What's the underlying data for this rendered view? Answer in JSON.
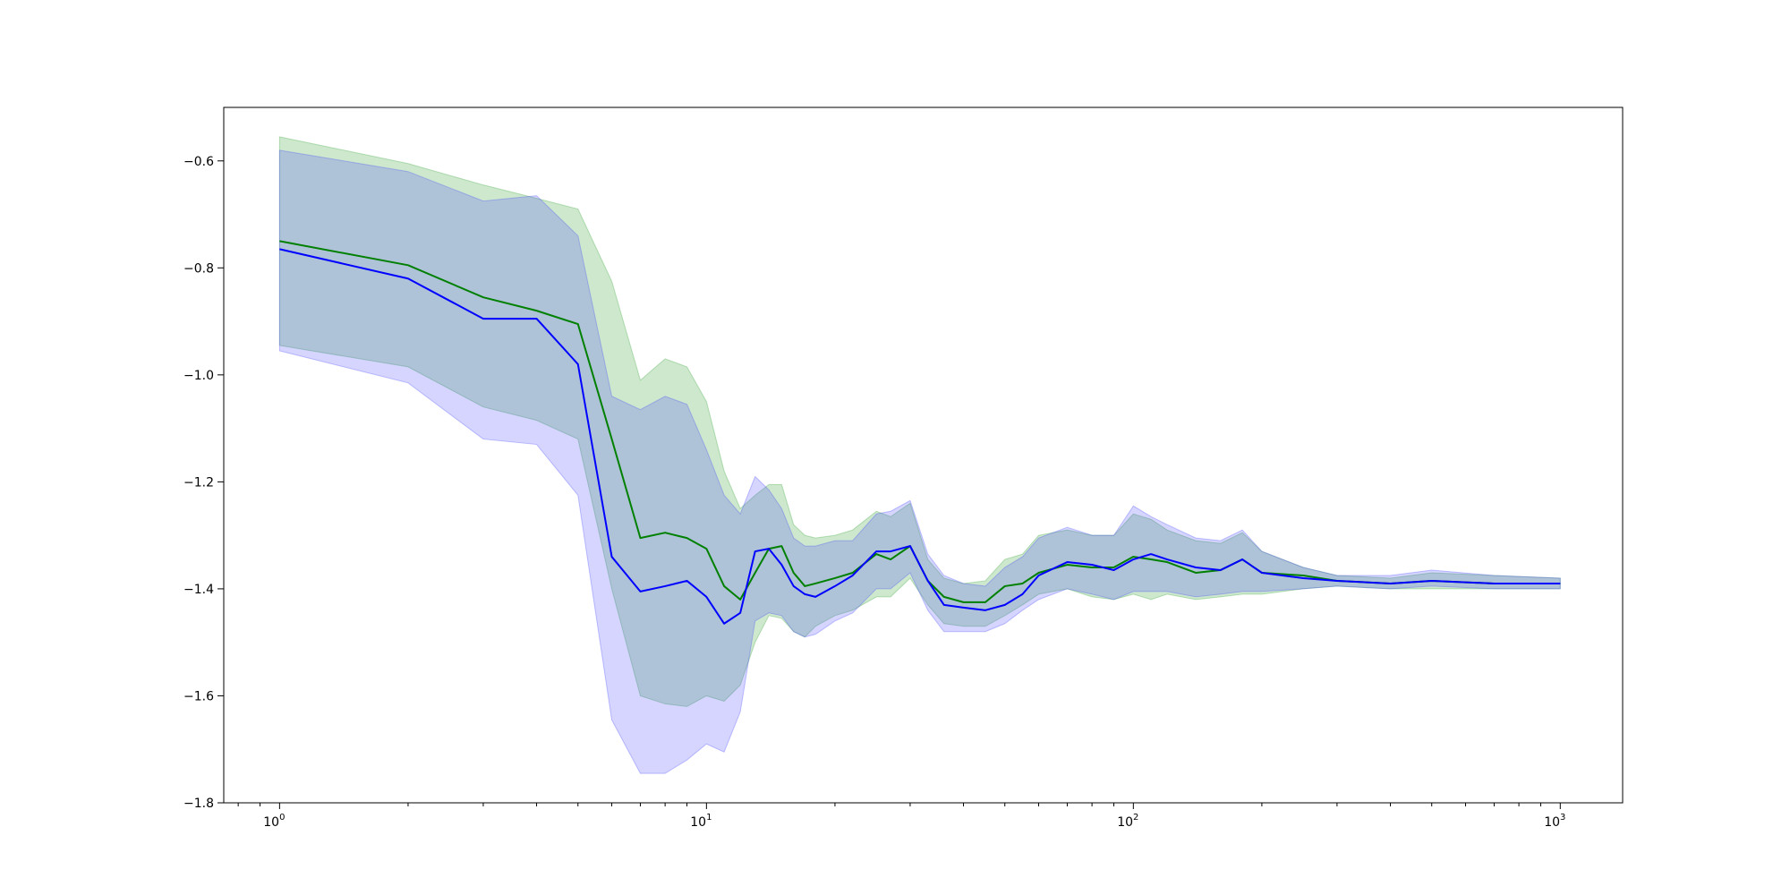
{
  "chart_data": {
    "type": "line",
    "title": "",
    "xlabel": "",
    "ylabel": "",
    "xscale": "log",
    "xlim": [
      0.74,
      1400
    ],
    "ylim": [
      -1.8,
      -0.5
    ],
    "grid": false,
    "x_major_ticks": [
      1,
      10,
      100,
      1000
    ],
    "x_tick_labels": [
      {
        "base": "10",
        "exp": "0"
      },
      {
        "base": "10",
        "exp": "1"
      },
      {
        "base": "10",
        "exp": "2"
      },
      {
        "base": "10",
        "exp": "3"
      }
    ],
    "y_ticks": [
      -0.6,
      -0.8,
      -1.0,
      -1.2,
      -1.4,
      -1.6,
      -1.8
    ],
    "y_tick_labels": [
      "−0.6",
      "−0.8",
      "−1.0",
      "−1.2",
      "−1.4",
      "−1.6",
      "−1.8"
    ],
    "colors": {
      "series_green": "#008000",
      "series_blue": "#0000ff",
      "band_green": "#2ca02c",
      "band_blue": "#4040ff"
    },
    "series": [
      {
        "color": "#008000",
        "x": [
          1,
          2,
          3,
          4,
          5,
          6,
          7,
          8,
          9,
          10,
          11,
          12,
          13,
          14,
          15,
          16,
          17,
          18,
          20,
          22,
          25,
          27,
          30,
          33,
          36,
          40,
          45,
          50,
          55,
          60,
          70,
          80,
          90,
          100,
          110,
          120,
          140,
          160,
          180,
          200,
          250,
          300,
          400,
          500,
          700,
          1000
        ],
        "y": [
          -0.75,
          -0.795,
          -0.855,
          -0.88,
          -0.905,
          -1.12,
          -1.305,
          -1.295,
          -1.305,
          -1.325,
          -1.395,
          -1.42,
          -1.37,
          -1.325,
          -1.32,
          -1.37,
          -1.395,
          -1.39,
          -1.38,
          -1.37,
          -1.335,
          -1.345,
          -1.32,
          -1.385,
          -1.415,
          -1.425,
          -1.425,
          -1.395,
          -1.39,
          -1.37,
          -1.355,
          -1.36,
          -1.36,
          -1.34,
          -1.345,
          -1.35,
          -1.37,
          -1.365,
          -1.345,
          -1.37,
          -1.375,
          -1.385,
          -1.39,
          -1.385,
          -1.39,
          -1.39
        ],
        "lower": [
          -0.945,
          -0.985,
          -1.06,
          -1.085,
          -1.12,
          -1.4,
          -1.6,
          -1.615,
          -1.62,
          -1.6,
          -1.61,
          -1.58,
          -1.5,
          -1.45,
          -1.455,
          -1.48,
          -1.49,
          -1.47,
          -1.45,
          -1.44,
          -1.415,
          -1.415,
          -1.38,
          -1.43,
          -1.465,
          -1.47,
          -1.47,
          -1.45,
          -1.43,
          -1.41,
          -1.4,
          -1.415,
          -1.42,
          -1.41,
          -1.42,
          -1.41,
          -1.42,
          -1.415,
          -1.41,
          -1.41,
          -1.4,
          -1.395,
          -1.4,
          -1.4,
          -1.4,
          -1.4
        ],
        "upper": [
          -0.555,
          -0.605,
          -0.645,
          -0.67,
          -0.69,
          -0.825,
          -1.01,
          -0.97,
          -0.985,
          -1.05,
          -1.18,
          -1.25,
          -1.225,
          -1.205,
          -1.205,
          -1.28,
          -1.3,
          -1.305,
          -1.3,
          -1.29,
          -1.255,
          -1.265,
          -1.24,
          -1.345,
          -1.38,
          -1.39,
          -1.385,
          -1.345,
          -1.335,
          -1.3,
          -1.29,
          -1.3,
          -1.3,
          -1.26,
          -1.27,
          -1.29,
          -1.31,
          -1.315,
          -1.295,
          -1.33,
          -1.36,
          -1.375,
          -1.38,
          -1.37,
          -1.375,
          -1.38
        ]
      },
      {
        "color": "#0000ff",
        "x": [
          1,
          2,
          3,
          4,
          5,
          6,
          7,
          8,
          9,
          10,
          11,
          12,
          13,
          14,
          15,
          16,
          17,
          18,
          20,
          22,
          25,
          27,
          30,
          33,
          36,
          40,
          45,
          50,
          55,
          60,
          70,
          80,
          90,
          100,
          110,
          120,
          140,
          160,
          180,
          200,
          250,
          300,
          400,
          500,
          700,
          1000
        ],
        "y": [
          -0.765,
          -0.82,
          -0.895,
          -0.895,
          -0.98,
          -1.34,
          -1.405,
          -1.395,
          -1.385,
          -1.415,
          -1.465,
          -1.445,
          -1.33,
          -1.325,
          -1.355,
          -1.395,
          -1.41,
          -1.415,
          -1.395,
          -1.375,
          -1.33,
          -1.33,
          -1.32,
          -1.385,
          -1.43,
          -1.435,
          -1.44,
          -1.43,
          -1.41,
          -1.375,
          -1.35,
          -1.355,
          -1.365,
          -1.345,
          -1.335,
          -1.345,
          -1.36,
          -1.365,
          -1.345,
          -1.37,
          -1.38,
          -1.385,
          -1.39,
          -1.385,
          -1.39,
          -1.39
        ],
        "lower": [
          -0.955,
          -1.015,
          -1.12,
          -1.13,
          -1.225,
          -1.645,
          -1.745,
          -1.745,
          -1.72,
          -1.69,
          -1.705,
          -1.63,
          -1.46,
          -1.445,
          -1.45,
          -1.48,
          -1.49,
          -1.485,
          -1.46,
          -1.445,
          -1.4,
          -1.4,
          -1.37,
          -1.44,
          -1.48,
          -1.48,
          -1.48,
          -1.465,
          -1.44,
          -1.42,
          -1.4,
          -1.41,
          -1.42,
          -1.405,
          -1.405,
          -1.405,
          -1.415,
          -1.41,
          -1.405,
          -1.405,
          -1.4,
          -1.395,
          -1.4,
          -1.395,
          -1.4,
          -1.4
        ],
        "upper": [
          -0.58,
          -0.62,
          -0.675,
          -0.665,
          -0.74,
          -1.04,
          -1.065,
          -1.04,
          -1.055,
          -1.14,
          -1.225,
          -1.26,
          -1.19,
          -1.215,
          -1.25,
          -1.305,
          -1.32,
          -1.32,
          -1.31,
          -1.31,
          -1.26,
          -1.255,
          -1.235,
          -1.335,
          -1.375,
          -1.39,
          -1.395,
          -1.36,
          -1.34,
          -1.305,
          -1.285,
          -1.3,
          -1.3,
          -1.245,
          -1.265,
          -1.28,
          -1.305,
          -1.31,
          -1.29,
          -1.33,
          -1.36,
          -1.375,
          -1.375,
          -1.365,
          -1.375,
          -1.38
        ]
      }
    ]
  }
}
